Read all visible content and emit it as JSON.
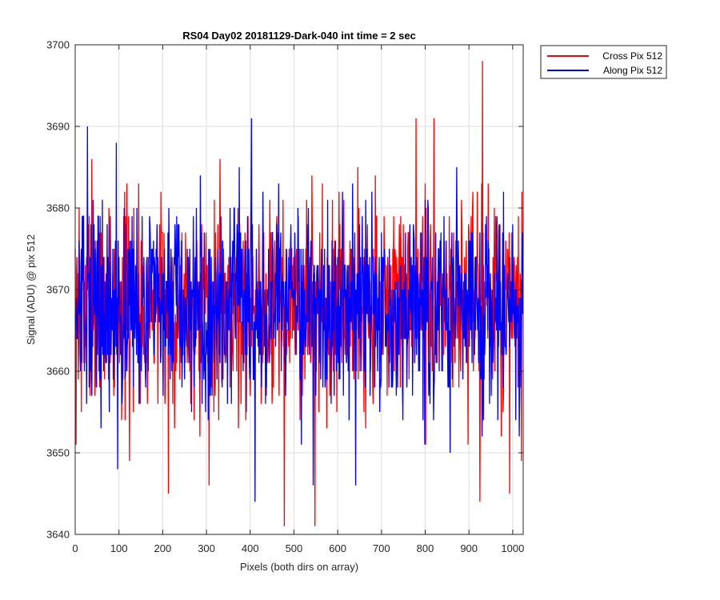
{
  "chart_data": {
    "type": "line",
    "title": "RS04 Day02 20181129-Dark-040 int time = 2 sec",
    "xlabel": "Pixels (both dirs on array)",
    "ylabel": "Signal (ADU) @ pix 512",
    "xlim": [
      0,
      1024
    ],
    "ylim": [
      3640,
      3700
    ],
    "xticks": [
      0,
      100,
      200,
      300,
      400,
      500,
      600,
      700,
      800,
      900,
      1000
    ],
    "yticks": [
      3640,
      3650,
      3660,
      3670,
      3680,
      3690,
      3700
    ],
    "grid": true,
    "legend_position": "outside top-right",
    "series": [
      {
        "name": "Cross Pix 512",
        "color": "#ff0000",
        "noise": {
          "n": 1024,
          "mean": 3668,
          "sd": 6.2,
          "seed": 7
        },
        "features": [
          [
            2,
            3651
          ],
          [
            9,
            3680
          ],
          [
            38,
            3686
          ],
          [
            124,
            3649
          ],
          [
            213,
            3645
          ],
          [
            306,
            3646
          ],
          [
            478,
            3641
          ],
          [
            548,
            3641
          ],
          [
            565,
            3683
          ],
          [
            779,
            3691
          ],
          [
            820,
            3691
          ],
          [
            925,
            3644
          ],
          [
            931,
            3698
          ],
          [
            993,
            3645
          ],
          [
            1020,
            3649
          ]
        ]
      },
      {
        "name": "Along Pix 512",
        "color": "#0000ff",
        "noise": {
          "n": 1024,
          "mean": 3668,
          "sd": 6.0,
          "seed": 13
        },
        "features": [
          [
            28,
            3690
          ],
          [
            97,
            3648
          ],
          [
            94,
            3688
          ],
          [
            403,
            3691
          ],
          [
            411,
            3644
          ],
          [
            429,
            3682
          ],
          [
            544,
            3646
          ],
          [
            641,
            3646
          ],
          [
            857,
            3650
          ],
          [
            872,
            3685
          ],
          [
            930,
            3652
          ],
          [
            1015,
            3652
          ]
        ]
      }
    ]
  }
}
